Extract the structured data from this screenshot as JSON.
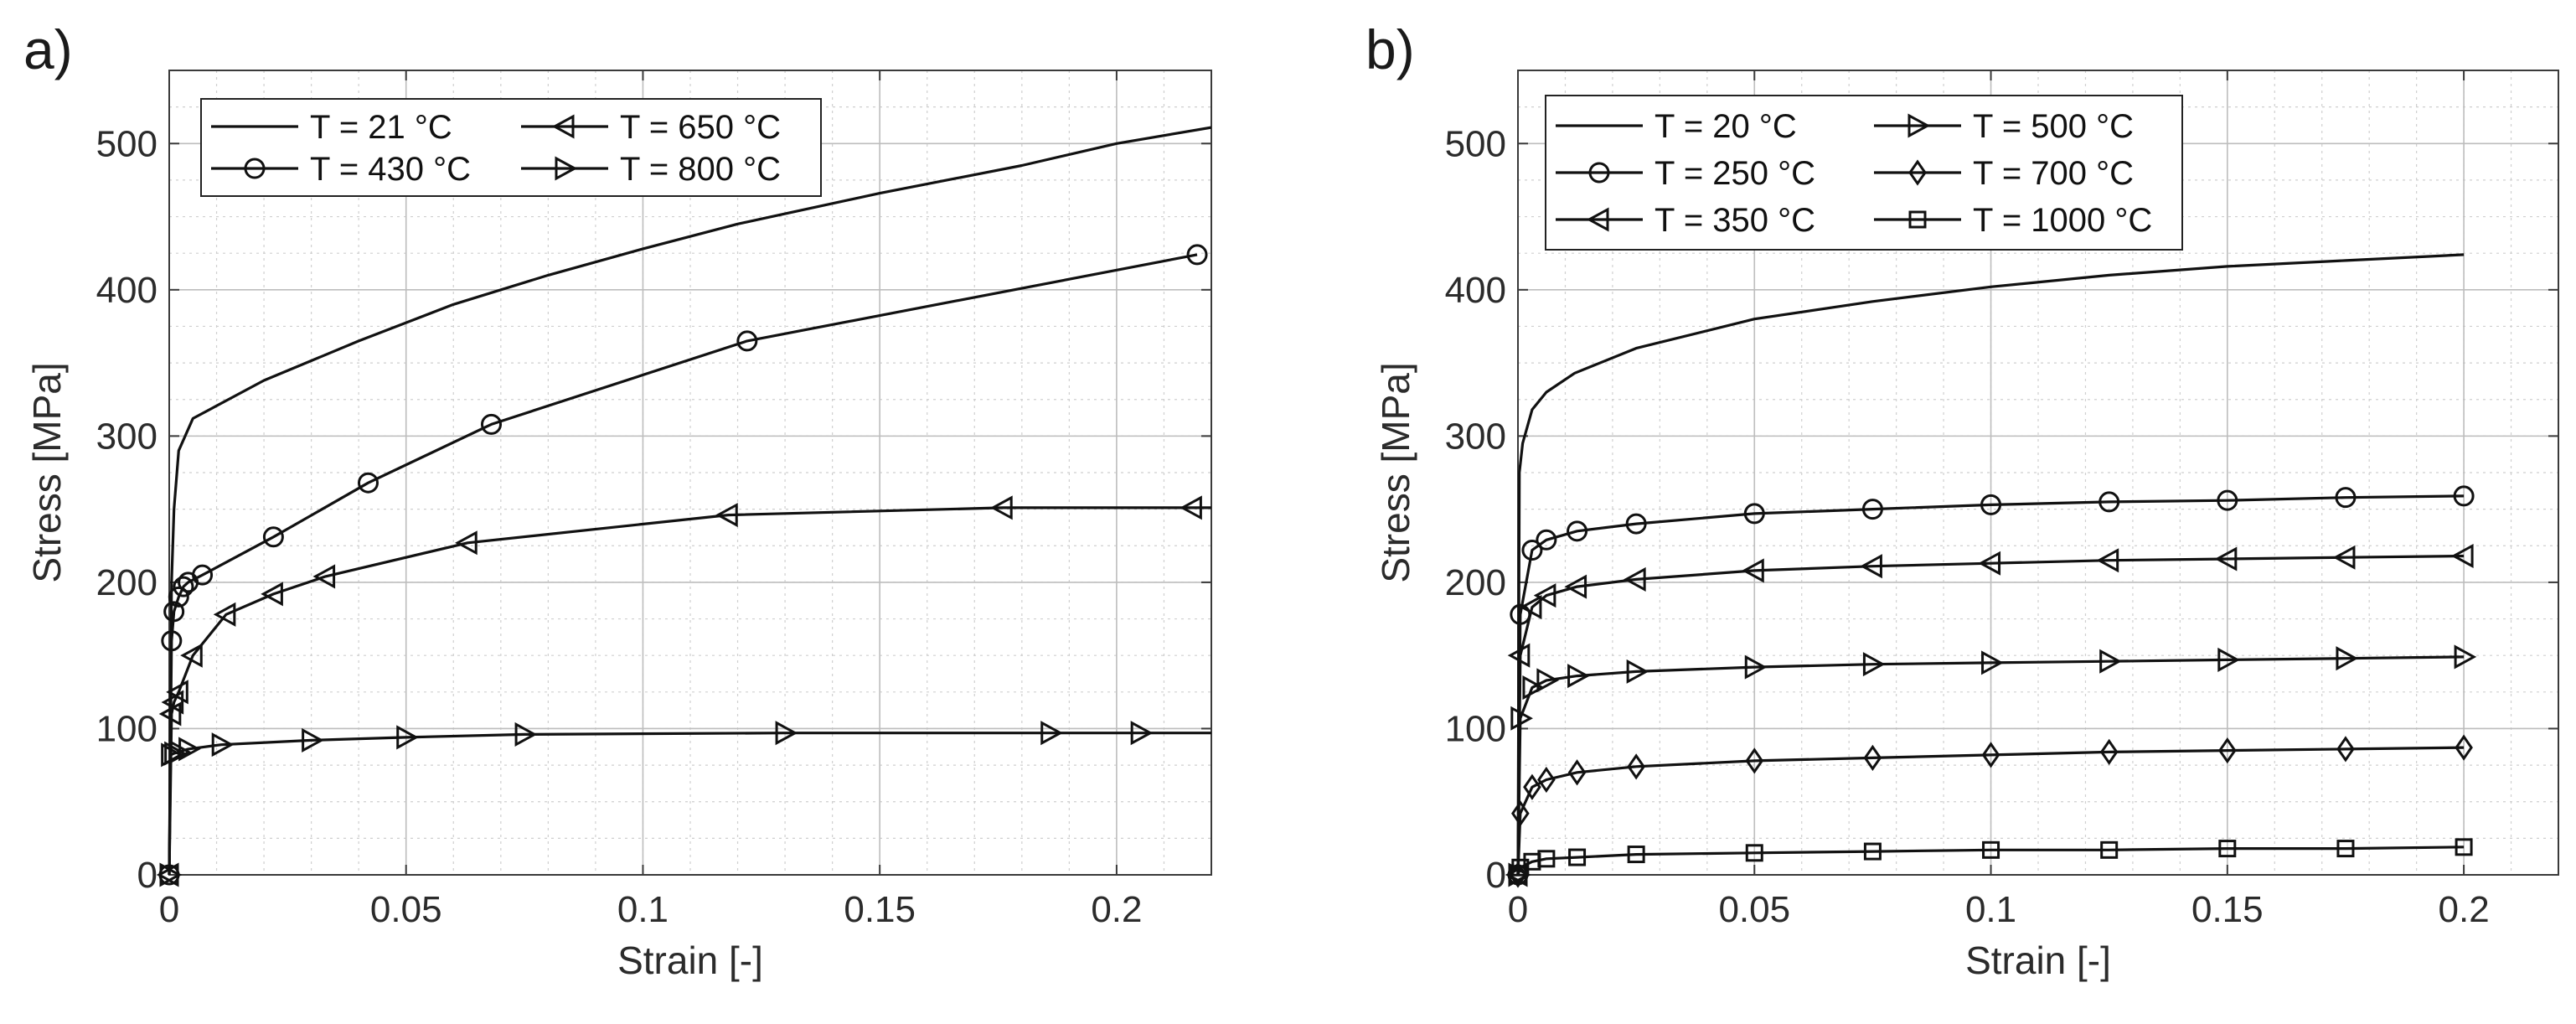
{
  "chart_data": [
    {
      "type": "line",
      "panel_label": "a)",
      "xlabel": "Strain [-]",
      "ylabel": "Stress [MPa]",
      "xlim": [
        0,
        0.22
      ],
      "ylim": [
        0,
        550
      ],
      "xticks": [
        0,
        0.05,
        0.1,
        0.15,
        0.2
      ],
      "xtick_labels": [
        "0",
        "0.05",
        "0.1",
        "0.15",
        "0.2"
      ],
      "yticks": [
        0,
        100,
        200,
        300,
        400,
        500
      ],
      "ytick_labels": [
        "0",
        "100",
        "200",
        "300",
        "400",
        "500"
      ],
      "grid": true,
      "legend_position": "top-left",
      "legend_columns": 2,
      "series": [
        {
          "name": "T = 21 °C",
          "marker": "none",
          "x": [
            0,
            0.0005,
            0.001,
            0.002,
            0.005,
            0.02,
            0.04,
            0.06,
            0.08,
            0.1,
            0.12,
            0.15,
            0.18,
            0.2,
            0.22
          ],
          "y": [
            0,
            200,
            250,
            290,
            312,
            338,
            365,
            390,
            410,
            428,
            445,
            466,
            485,
            500,
            511
          ],
          "marker_x": [],
          "marker_y": []
        },
        {
          "name": "T = 650 °C",
          "marker": "triangle-left",
          "x": [
            0,
            0.0005,
            0.001,
            0.002,
            0.005,
            0.012,
            0.022,
            0.033,
            0.063,
            0.118,
            0.176,
            0.216,
            0.22
          ],
          "y": [
            0,
            110,
            118,
            125,
            150,
            178,
            192,
            204,
            227,
            246,
            251,
            251,
            251
          ],
          "marker_x": [
            0,
            0.0005,
            0.001,
            0.002,
            0.005,
            0.012,
            0.022,
            0.033,
            0.063,
            0.118,
            0.176,
            0.216
          ],
          "marker_y": [
            0,
            110,
            118,
            125,
            150,
            178,
            192,
            204,
            227,
            246,
            251,
            251
          ]
        },
        {
          "name": "T = 430 °C",
          "marker": "circle",
          "x": [
            0,
            0.0005,
            0.001,
            0.002,
            0.003,
            0.004,
            0.007,
            0.022,
            0.042,
            0.068,
            0.122,
            0.217
          ],
          "y": [
            0,
            160,
            180,
            190,
            197,
            200,
            205,
            231,
            268,
            308,
            365,
            424
          ],
          "marker_x": [
            0,
            0.0005,
            0.001,
            0.002,
            0.003,
            0.004,
            0.007,
            0.022,
            0.042,
            0.068,
            0.122,
            0.217
          ],
          "marker_y": [
            0,
            160,
            180,
            190,
            197,
            200,
            205,
            231,
            268,
            308,
            365,
            424
          ]
        },
        {
          "name": "T = 800 °C",
          "marker": "triangle-right",
          "x": [
            0,
            0.0003,
            0.001,
            0.002,
            0.004,
            0.011,
            0.03,
            0.05,
            0.075,
            0.13,
            0.186,
            0.205,
            0.22
          ],
          "y": [
            0,
            82,
            83,
            84,
            86,
            89,
            92,
            94,
            96,
            97,
            97,
            97,
            97
          ],
          "marker_x": [
            0,
            0.0003,
            0.001,
            0.002,
            0.004,
            0.011,
            0.03,
            0.05,
            0.075,
            0.13,
            0.186,
            0.205
          ],
          "marker_y": [
            0,
            82,
            83,
            84,
            86,
            89,
            92,
            94,
            96,
            97,
            97,
            97
          ]
        }
      ]
    },
    {
      "type": "line",
      "panel_label": "b)",
      "xlabel": "Strain [-]",
      "ylabel": "Stress [MPa]",
      "xlim": [
        0,
        0.22
      ],
      "ylim": [
        0,
        550
      ],
      "xticks": [
        0,
        0.05,
        0.1,
        0.15,
        0.2
      ],
      "xtick_labels": [
        "0",
        "0.05",
        "0.1",
        "0.15",
        "0.2"
      ],
      "yticks": [
        0,
        100,
        200,
        300,
        400,
        500
      ],
      "ytick_labels": [
        "0",
        "100",
        "200",
        "300",
        "400",
        "500"
      ],
      "grid": true,
      "legend_position": "top-left",
      "legend_columns": 2,
      "series": [
        {
          "name": "T = 20 °C",
          "marker": "none",
          "x": [
            0,
            0.0003,
            0.001,
            0.003,
            0.006,
            0.012,
            0.025,
            0.05,
            0.075,
            0.1,
            0.125,
            0.15,
            0.175,
            0.2
          ],
          "y": [
            0,
            275,
            295,
            318,
            330,
            343,
            360,
            380,
            392,
            402,
            410,
            416,
            420,
            424
          ],
          "marker_x": [],
          "marker_y": []
        },
        {
          "name": "T = 500 °C",
          "marker": "triangle-right",
          "x": [
            0,
            0.0005,
            0.003,
            0.006,
            0.0125,
            0.025,
            0.05,
            0.075,
            0.1,
            0.125,
            0.15,
            0.175,
            0.2
          ],
          "y": [
            0,
            107,
            128,
            133,
            136,
            139,
            142,
            144,
            145,
            146,
            147,
            148,
            149
          ],
          "marker_x": [
            0,
            0.0005,
            0.003,
            0.006,
            0.0125,
            0.025,
            0.05,
            0.075,
            0.1,
            0.125,
            0.15,
            0.175,
            0.2
          ],
          "marker_y": [
            0,
            107,
            128,
            133,
            136,
            139,
            142,
            144,
            145,
            146,
            147,
            148,
            149
          ]
        },
        {
          "name": "T = 250 °C",
          "marker": "circle",
          "x": [
            0,
            0.0005,
            0.003,
            0.006,
            0.0125,
            0.025,
            0.05,
            0.075,
            0.1,
            0.125,
            0.15,
            0.175,
            0.2
          ],
          "y": [
            0,
            178,
            222,
            229,
            235,
            240,
            247,
            250,
            253,
            255,
            256,
            258,
            259
          ],
          "marker_x": [
            0,
            0.0005,
            0.003,
            0.006,
            0.0125,
            0.025,
            0.05,
            0.075,
            0.1,
            0.125,
            0.15,
            0.175,
            0.2
          ],
          "marker_y": [
            0,
            178,
            222,
            229,
            235,
            240,
            247,
            250,
            253,
            255,
            256,
            258,
            259
          ]
        },
        {
          "name": "T = 700 °C",
          "marker": "diamond",
          "x": [
            0,
            0.0005,
            0.003,
            0.006,
            0.0125,
            0.025,
            0.05,
            0.075,
            0.1,
            0.125,
            0.15,
            0.175,
            0.2
          ],
          "y": [
            0,
            42,
            60,
            65,
            70,
            74,
            78,
            80,
            82,
            84,
            85,
            86,
            87
          ],
          "marker_x": [
            0,
            0.0005,
            0.003,
            0.006,
            0.0125,
            0.025,
            0.05,
            0.075,
            0.1,
            0.125,
            0.15,
            0.175,
            0.2
          ],
          "marker_y": [
            0,
            42,
            60,
            65,
            70,
            74,
            78,
            80,
            82,
            84,
            85,
            86,
            87
          ]
        },
        {
          "name": "T = 350 °C",
          "marker": "triangle-left",
          "x": [
            0,
            0.0005,
            0.003,
            0.006,
            0.0125,
            0.025,
            0.05,
            0.075,
            0.1,
            0.125,
            0.15,
            0.175,
            0.2
          ],
          "y": [
            0,
            150,
            183,
            191,
            197,
            202,
            208,
            211,
            213,
            215,
            216,
            217,
            218
          ],
          "marker_x": [
            0,
            0.0005,
            0.003,
            0.006,
            0.0125,
            0.025,
            0.05,
            0.075,
            0.1,
            0.125,
            0.15,
            0.175,
            0.2
          ],
          "marker_y": [
            0,
            150,
            183,
            191,
            197,
            202,
            208,
            211,
            213,
            215,
            216,
            217,
            218
          ]
        },
        {
          "name": "T = 1000 °C",
          "marker": "square",
          "x": [
            0,
            0.0005,
            0.003,
            0.006,
            0.0125,
            0.025,
            0.05,
            0.075,
            0.1,
            0.125,
            0.15,
            0.175,
            0.2
          ],
          "y": [
            0,
            5,
            9,
            11,
            12,
            14,
            15,
            16,
            17,
            17,
            18,
            18,
            19
          ],
          "marker_x": [
            0,
            0.0005,
            0.003,
            0.006,
            0.0125,
            0.025,
            0.05,
            0.075,
            0.1,
            0.125,
            0.15,
            0.175,
            0.2
          ],
          "marker_y": [
            0,
            5,
            9,
            11,
            12,
            14,
            15,
            16,
            17,
            17,
            18,
            18,
            19
          ]
        }
      ]
    }
  ]
}
